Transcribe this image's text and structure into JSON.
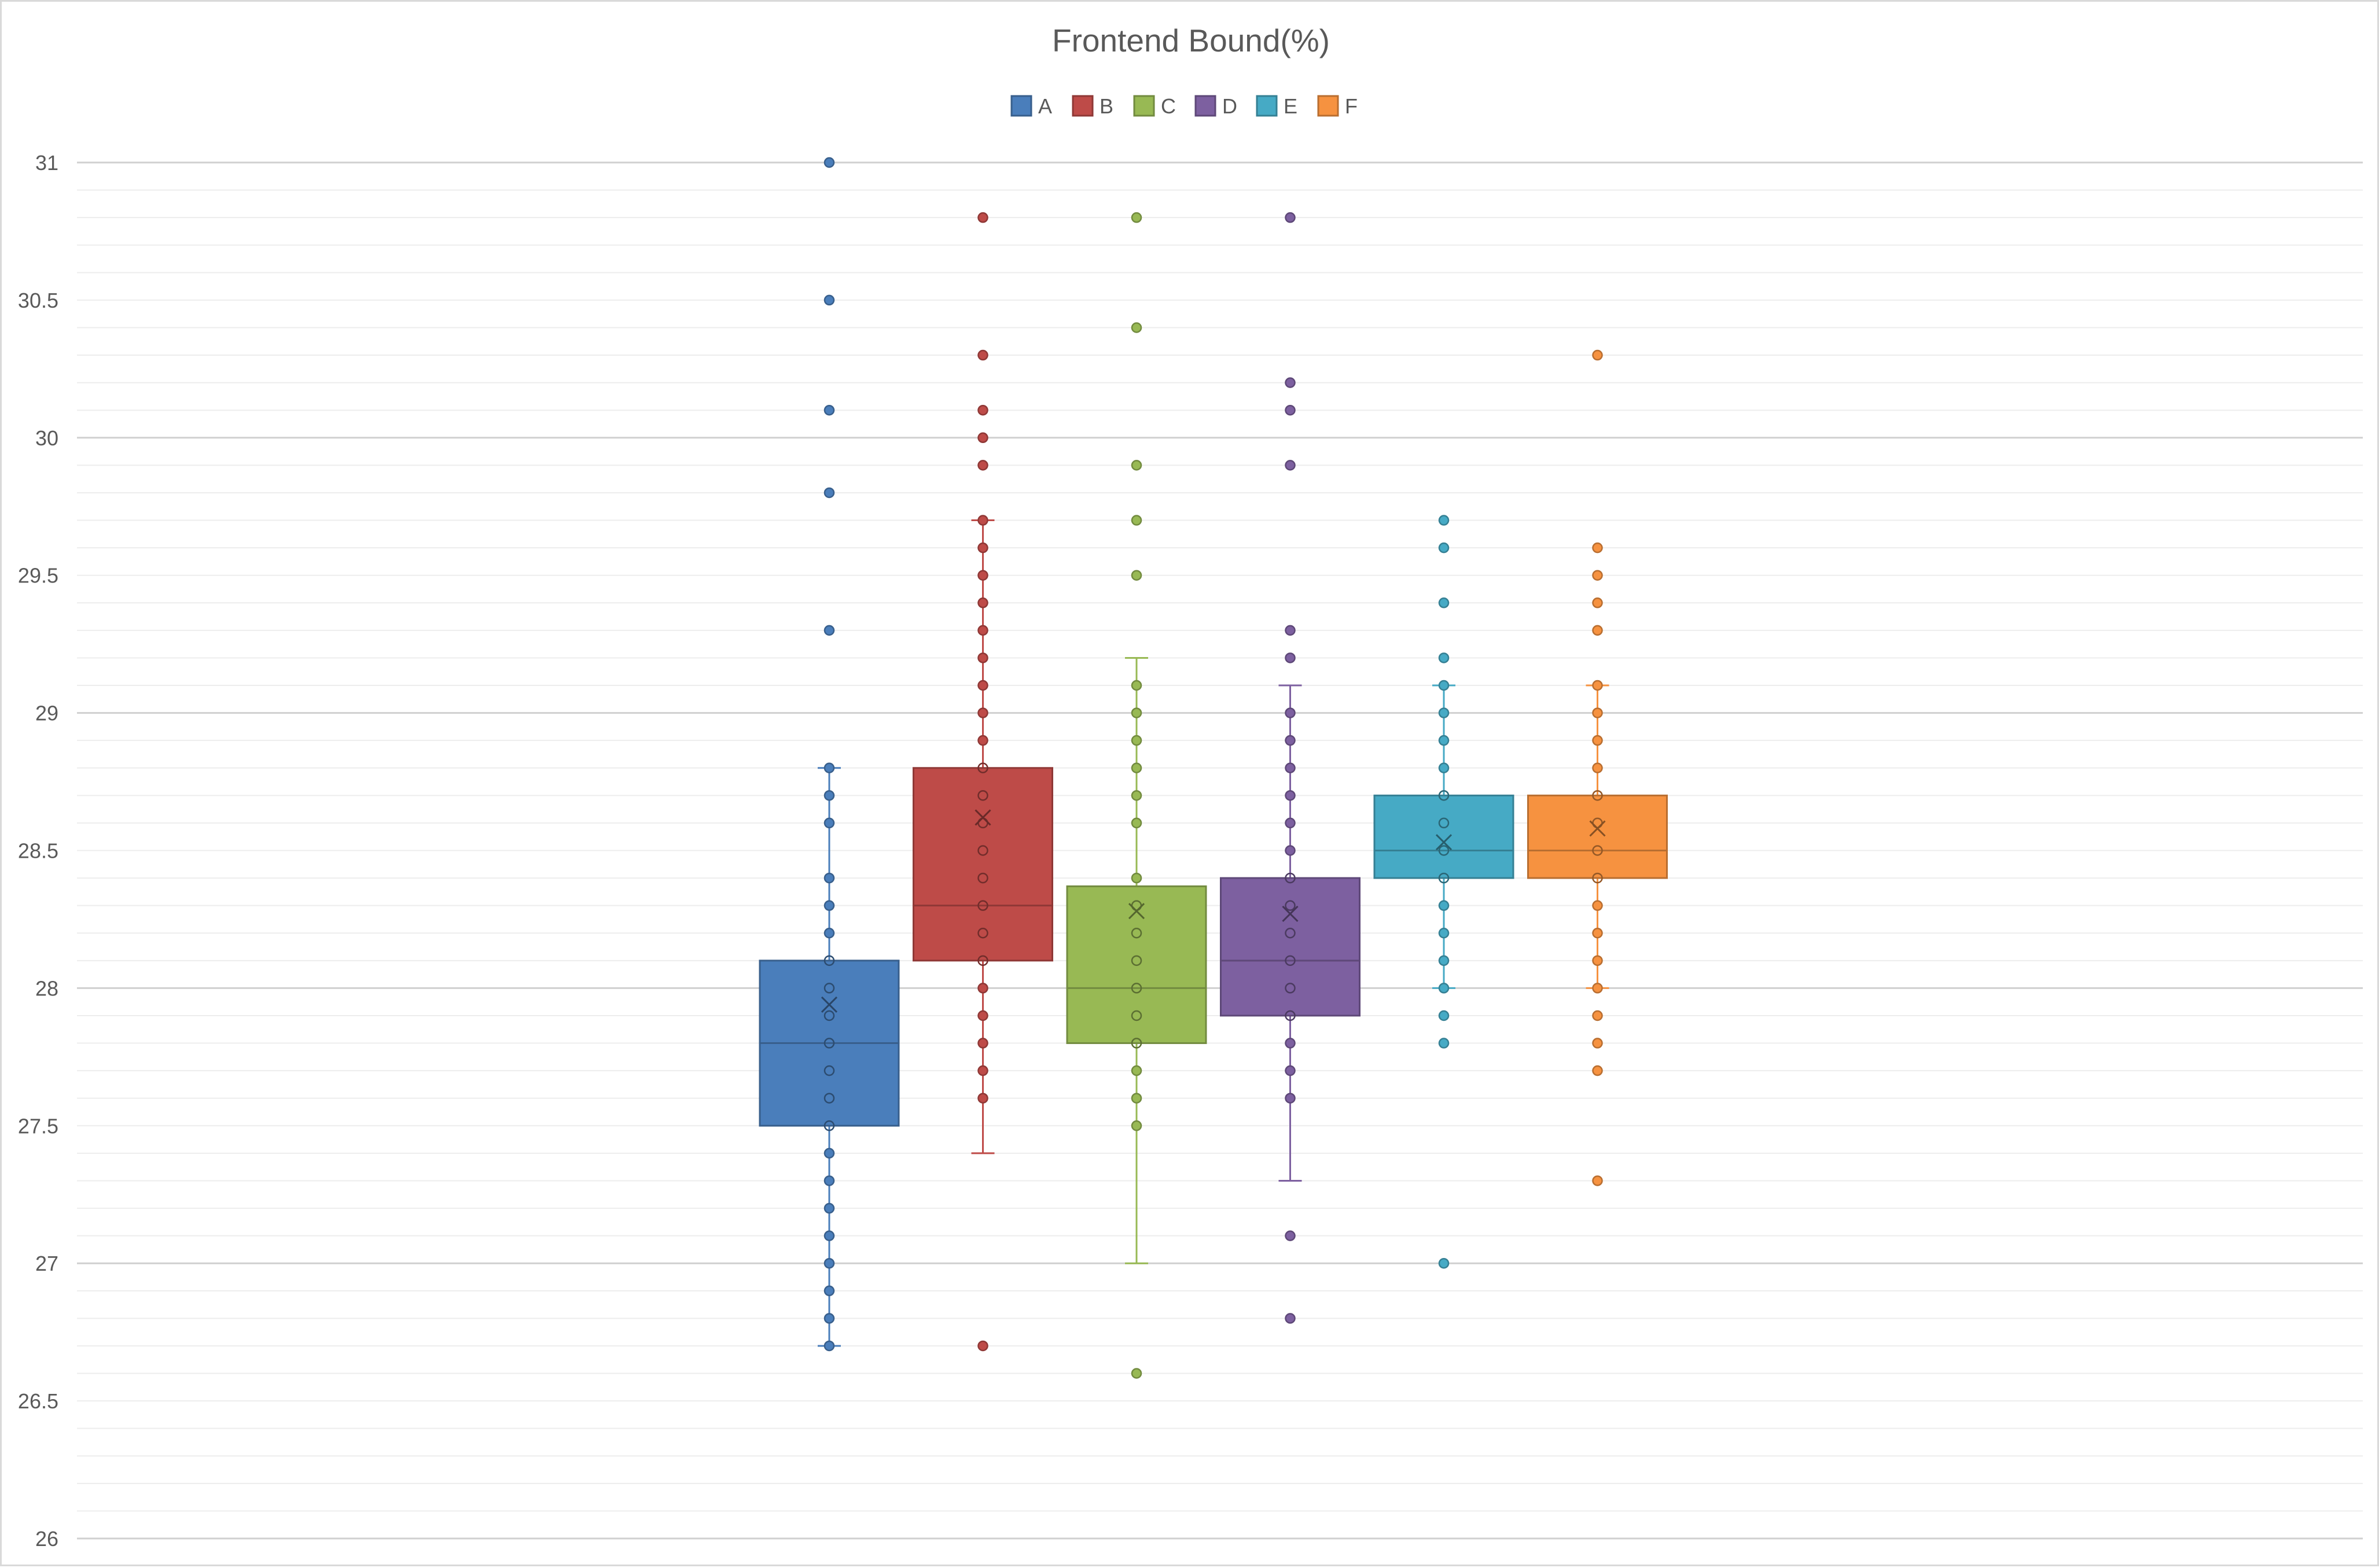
{
  "chart_data": {
    "type": "box",
    "title": "Frontend Bound(%)",
    "xlabel": "",
    "ylabel": "",
    "ylim": [
      26,
      31
    ],
    "y_ticks": [
      "31",
      "30.5",
      "30",
      "29.5",
      "29",
      "28.5",
      "28",
      "27.5",
      "27",
      "26.5",
      "26"
    ],
    "grid": true,
    "legend_position": "top",
    "series": [
      {
        "name": "A",
        "color": "#4a7ebb",
        "q1": 27.5,
        "median": 27.8,
        "q3": 28.1,
        "mean": 27.94,
        "whisker_low": 26.7,
        "whisker_high": 28.8,
        "points": [
          31.0,
          30.5,
          30.1,
          29.8,
          29.3,
          28.8,
          28.7,
          28.6,
          28.4,
          28.3,
          28.2,
          28.1,
          28.0,
          27.9,
          27.8,
          27.7,
          27.6,
          27.5,
          27.4,
          27.3,
          27.2,
          27.1,
          27.0,
          26.9,
          26.8,
          26.7
        ]
      },
      {
        "name": "B",
        "color": "#be4b48",
        "q1": 28.1,
        "median": 28.3,
        "q3": 28.8,
        "mean": 28.62,
        "whisker_low": 27.4,
        "whisker_high": 29.7,
        "points": [
          30.8,
          30.3,
          30.1,
          30.0,
          29.9,
          29.7,
          29.6,
          29.5,
          29.4,
          29.3,
          29.2,
          29.1,
          29.0,
          28.9,
          28.8,
          28.7,
          28.6,
          28.5,
          28.4,
          28.3,
          28.2,
          28.1,
          28.0,
          27.9,
          27.8,
          27.7,
          27.6,
          26.7
        ]
      },
      {
        "name": "C",
        "color": "#98b954",
        "q1": 27.8,
        "median": 28.0,
        "q3": 28.37,
        "mean": 28.28,
        "whisker_low": 27.0,
        "whisker_high": 29.2,
        "points": [
          30.8,
          30.4,
          29.9,
          29.7,
          29.5,
          29.1,
          29.0,
          28.9,
          28.8,
          28.7,
          28.6,
          28.4,
          28.3,
          28.2,
          28.1,
          28.0,
          27.9,
          27.8,
          27.7,
          27.6,
          27.5,
          26.6
        ]
      },
      {
        "name": "D",
        "color": "#7d60a0",
        "q1": 27.9,
        "median": 28.1,
        "q3": 28.4,
        "mean": 28.27,
        "whisker_low": 27.3,
        "whisker_high": 29.1,
        "points": [
          30.8,
          30.2,
          30.1,
          29.9,
          29.3,
          29.2,
          29.0,
          28.9,
          28.8,
          28.7,
          28.6,
          28.5,
          28.4,
          28.3,
          28.2,
          28.1,
          28.0,
          27.9,
          27.8,
          27.7,
          27.6,
          27.1,
          26.8
        ]
      },
      {
        "name": "E",
        "color": "#46aac5",
        "q1": 28.4,
        "median": 28.5,
        "q3": 28.7,
        "mean": 28.53,
        "whisker_low": 28.0,
        "whisker_high": 29.1,
        "points": [
          29.7,
          29.6,
          29.4,
          29.2,
          29.1,
          29.0,
          28.9,
          28.8,
          28.7,
          28.6,
          28.5,
          28.4,
          28.3,
          28.2,
          28.1,
          28.0,
          27.9,
          27.8,
          27.0
        ]
      },
      {
        "name": "F",
        "color": "#f69240",
        "q1": 28.4,
        "median": 28.5,
        "q3": 28.7,
        "mean": 28.58,
        "whisker_low": 28.0,
        "whisker_high": 29.1,
        "points": [
          30.3,
          29.6,
          29.5,
          29.4,
          29.3,
          29.1,
          29.0,
          28.9,
          28.8,
          28.7,
          28.6,
          28.5,
          28.4,
          28.3,
          28.2,
          28.1,
          28.0,
          27.9,
          27.8,
          27.7,
          27.3
        ]
      }
    ]
  }
}
